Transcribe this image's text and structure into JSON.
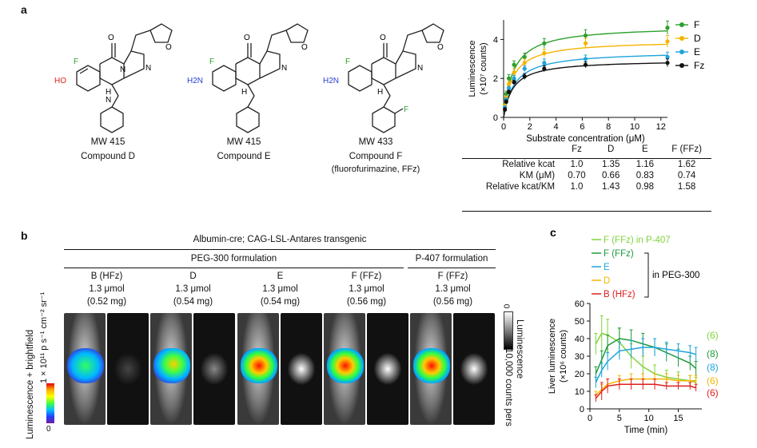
{
  "panel_a": {
    "letter": "a",
    "compounds": [
      {
        "mw": "MW 415",
        "name": "Compound D",
        "sub": ""
      },
      {
        "mw": "MW 415",
        "name": "Compound E",
        "sub": ""
      },
      {
        "mw": "MW 433",
        "name": "Compound F",
        "sub": "(fluorofurimazine, FFz)"
      }
    ],
    "atom_labels": {
      "o": "O",
      "n": "N",
      "h": "H",
      "f": "F",
      "ho": "HO",
      "h2n": "H2N"
    },
    "table": {
      "headers": [
        "",
        "Fz",
        "D",
        "E",
        "F (FFz)"
      ],
      "rows": [
        {
          "label": "Relative kcat",
          "values": [
            "1.0",
            "1.35",
            "1.16",
            "1.62"
          ]
        },
        {
          "label": "KM (μM)",
          "values": [
            "0.70",
            "0.66",
            "0.83",
            "0.74"
          ]
        },
        {
          "label": "Relative kcat/KM",
          "values": [
            "1.0",
            "1.43",
            "0.98",
            "1.58"
          ]
        }
      ]
    }
  },
  "panel_b": {
    "letter": "b",
    "title": "Albumin-cre; CAG-LSL-Antares transgenic",
    "group1": "PEG-300 formulation",
    "group2": "P-407 formulation",
    "columns": [
      {
        "name": "B (HFz)",
        "dose": "1.3 μmol",
        "mass": "(0.52 mg)"
      },
      {
        "name": "D",
        "dose": "1.3 μmol",
        "mass": "(0.54 mg)"
      },
      {
        "name": "E",
        "dose": "1.3 μmol",
        "mass": "(0.54 mg)"
      },
      {
        "name": "F (FFz)",
        "dose": "1.3 μmol",
        "mass": "(0.56 mg)"
      },
      {
        "name": "F (FFz)",
        "dose": "1.3 μmol",
        "mass": "(0.56 mg)"
      }
    ],
    "left_label": "Luminescence + brightfield",
    "left_scale": "1 × 10¹¹ p s⁻¹ cm⁻² sr⁻¹",
    "left_zero": "0",
    "right_label": "Luminescence",
    "right_scale": "10,000 counts pers",
    "right_zero": "0"
  },
  "chart_data": [
    {
      "type": "line",
      "panel": "a",
      "xlabel": "Substrate concentration (μM)",
      "ylabel": "Luminescence",
      "yunit": "(×10⁷ counts)",
      "xlim": [
        0,
        12.5
      ],
      "ylim": [
        0,
        5
      ],
      "xticks": [
        0,
        2,
        4,
        6,
        8,
        10,
        12
      ],
      "yticks": [
        0,
        2,
        4
      ],
      "legend_position": "right",
      "series": [
        {
          "name": "F",
          "color": "#2ca02c",
          "x": [
            0.1,
            0.2,
            0.4,
            0.8,
            1.6,
            3.1,
            6.25,
            12.5
          ],
          "y": [
            0.7,
            1.2,
            2.0,
            2.7,
            3.1,
            3.8,
            4.2,
            4.6
          ],
          "err": [
            0.1,
            0.15,
            0.2,
            0.2,
            0.2,
            0.25,
            0.3,
            0.35
          ]
        },
        {
          "name": "D",
          "color": "#f5b400",
          "x": [
            0.1,
            0.2,
            0.4,
            0.8,
            1.6,
            3.1,
            6.25,
            12.5
          ],
          "y": [
            0.6,
            1.0,
            1.7,
            2.3,
            2.8,
            3.3,
            3.8,
            3.9
          ],
          "err": [
            0.1,
            0.1,
            0.15,
            0.2,
            0.2,
            0.2,
            0.25,
            0.3
          ]
        },
        {
          "name": "E",
          "color": "#1fa3dc",
          "x": [
            0.1,
            0.2,
            0.4,
            0.8,
            1.6,
            3.1,
            6.25,
            12.5
          ],
          "y": [
            0.5,
            0.9,
            1.5,
            2.0,
            2.5,
            2.8,
            3.0,
            3.1
          ],
          "err": [
            0.1,
            0.1,
            0.1,
            0.15,
            0.15,
            0.2,
            0.2,
            0.25
          ]
        },
        {
          "name": "Fz",
          "color": "#111111",
          "x": [
            0.1,
            0.2,
            0.4,
            0.8,
            1.6,
            3.1,
            6.25,
            12.5
          ],
          "y": [
            0.4,
            0.8,
            1.3,
            1.8,
            2.1,
            2.5,
            2.7,
            2.8
          ],
          "err": [
            0.1,
            0.1,
            0.1,
            0.1,
            0.15,
            0.15,
            0.15,
            0.2
          ]
        }
      ],
      "fits": [
        {
          "color": "#2ca02c",
          "vmax": 4.7,
          "km": 0.74
        },
        {
          "color": "#f5b400",
          "vmax": 3.95,
          "km": 0.66
        },
        {
          "color": "#1fa3dc",
          "vmax": 3.4,
          "km": 0.83
        },
        {
          "color": "#111111",
          "vmax": 2.95,
          "km": 0.7
        }
      ]
    },
    {
      "type": "line",
      "panel": "c",
      "xlabel": "Time (min)",
      "ylabel": "Liver luminescence",
      "yunit": "(×10⁶ counts)",
      "xlim": [
        0,
        19
      ],
      "ylim": [
        0,
        60
      ],
      "xticks": [
        0,
        5,
        10,
        15,
        20
      ],
      "yticks": [
        0,
        10,
        20,
        30,
        40,
        50,
        60
      ],
      "legend_bracket": "in PEG-300",
      "series": [
        {
          "name": "F (FFz) in P-407",
          "color": "#7fd33a",
          "n": "(6)",
          "x": [
            1,
            2,
            3,
            5,
            7,
            9,
            11,
            13,
            15,
            17,
            18
          ],
          "y": [
            37,
            43,
            42,
            38,
            30,
            24,
            20,
            18,
            17,
            16,
            15
          ],
          "err": [
            6,
            10,
            9,
            8,
            7,
            6,
            5,
            4,
            4,
            3,
            3
          ]
        },
        {
          "name": "F (FFz)",
          "color": "#1f9a3c",
          "n": "(8)",
          "x": [
            1,
            2,
            3,
            5,
            7,
            9,
            11,
            13,
            15,
            17,
            18
          ],
          "y": [
            20,
            28,
            36,
            40,
            39,
            37,
            35,
            32,
            29,
            26,
            23
          ],
          "err": [
            4,
            5,
            6,
            6,
            6,
            6,
            5,
            5,
            5,
            4,
            4
          ]
        },
        {
          "name": "E",
          "color": "#1fa3dc",
          "n": "(8)",
          "x": [
            1,
            2,
            3,
            5,
            7,
            9,
            11,
            13,
            15,
            17,
            18
          ],
          "y": [
            15,
            22,
            27,
            33,
            34,
            35,
            35,
            34,
            33,
            32,
            31
          ],
          "err": [
            3,
            4,
            5,
            5,
            5,
            5,
            5,
            4,
            4,
            4,
            4
          ]
        },
        {
          "name": "D",
          "color": "#f5b400",
          "n": "(6)",
          "x": [
            1,
            2,
            3,
            5,
            7,
            9,
            11,
            13,
            15,
            17,
            18
          ],
          "y": [
            8,
            11,
            14,
            16,
            17,
            17,
            17,
            17,
            16,
            16,
            16
          ],
          "err": [
            2,
            3,
            3,
            3,
            3,
            3,
            3,
            3,
            3,
            3,
            3
          ]
        },
        {
          "name": "B (HFz)",
          "color": "#e0201c",
          "n": "(6)",
          "x": [
            1,
            2,
            3,
            5,
            7,
            9,
            11,
            13,
            15,
            17,
            18
          ],
          "y": [
            6,
            10,
            13,
            14,
            14,
            14,
            14,
            13,
            13,
            13,
            12
          ],
          "err": [
            2,
            5,
            4,
            3,
            3,
            3,
            3,
            2,
            2,
            2,
            2
          ]
        }
      ],
      "letter": "c"
    }
  ]
}
